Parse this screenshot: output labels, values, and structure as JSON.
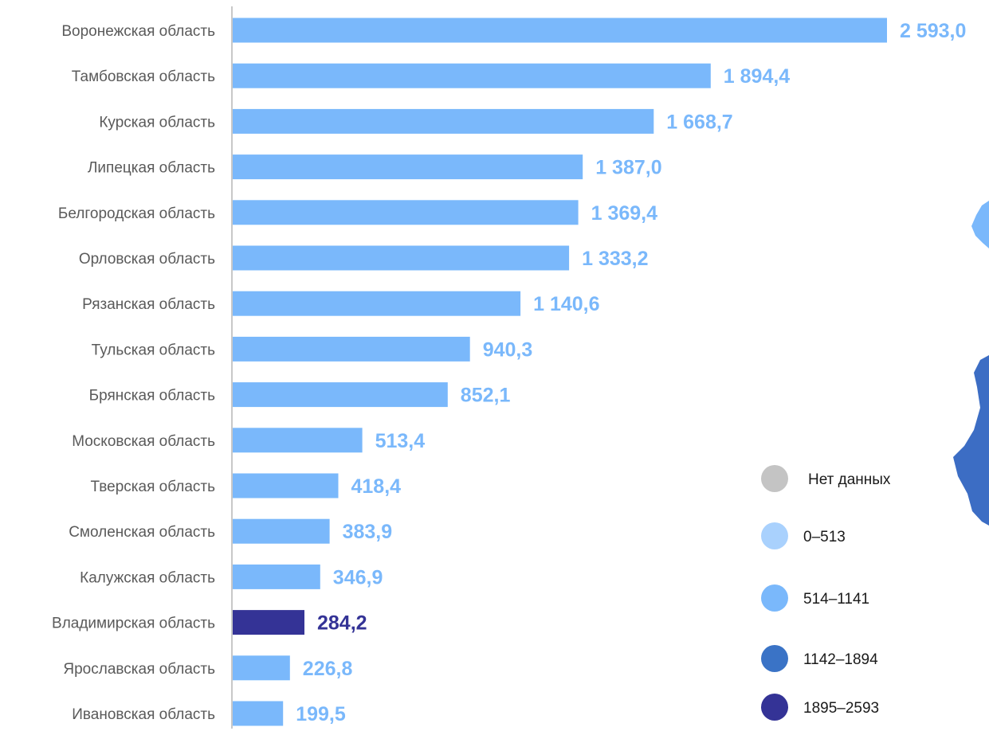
{
  "chart_data": {
    "type": "bar",
    "orientation": "horizontal",
    "categories": [
      "Воронежская область",
      "Тамбовская область",
      "Курская область",
      "Липецкая область",
      "Белгородская область",
      "Орловская область",
      "Рязанская область",
      "Тульская область",
      "Брянская область",
      "Московская область",
      "Тверская область",
      "Смоленская область",
      "Калужская область",
      "Владимирская область",
      "Ярославская область",
      "Ивановская область"
    ],
    "values": [
      2593.0,
      1894.4,
      1668.7,
      1387.0,
      1369.4,
      1333.2,
      1140.6,
      940.3,
      852.1,
      513.4,
      418.4,
      383.9,
      346.9,
      284.2,
      226.8,
      199.5
    ],
    "value_labels": [
      "2 593,0",
      "1 894,4",
      "1 668,7",
      "1 387,0",
      "1 369,4",
      "1 333,2",
      "1 140,6",
      "940,3",
      "852,1",
      "513,4",
      "418,4",
      "383,9",
      "346,9",
      "284,2",
      "226,8",
      "199,5"
    ],
    "highlighted_category": "Владимирская область",
    "bar_color": "#7ab8fb",
    "highlight_color": "#343396",
    "title": "",
    "xlabel": "",
    "ylabel": "",
    "xlim": [
      0,
      2593.0
    ],
    "grid": false
  },
  "legend": {
    "items": [
      {
        "label": "Нет данных",
        "color": "#c4c4c4"
      },
      {
        "label": "0–513",
        "color": "#a9d1fd"
      },
      {
        "label": "514–1141",
        "color": "#7ab8fb"
      },
      {
        "label": "1142–1894",
        "color": "#3a73c6"
      },
      {
        "label": "1895–2593",
        "color": "#343396"
      }
    ]
  },
  "map_fragment": {
    "color": "#3c6dc4"
  }
}
